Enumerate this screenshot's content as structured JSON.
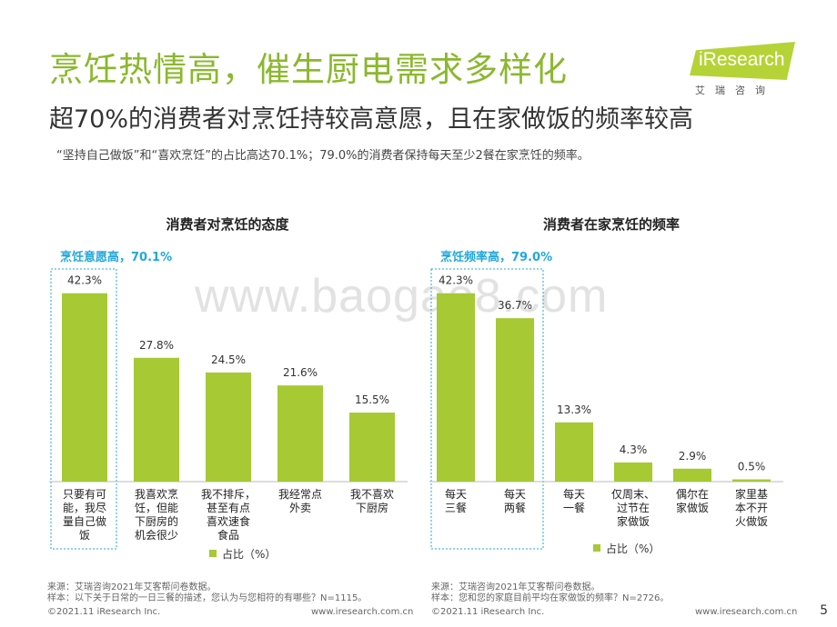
{
  "header": {
    "title": "烹饪热情高，催生厨电需求多样化",
    "subtitle": "超70%的消费者对烹饪持较高意愿，且在家做饭的频率较高",
    "summary": "“坚持自己做饭”和“喜欢烹饪”的占比高达70.1%；79.0%的消费者保持每天至少2餐在家烹饪的频率。"
  },
  "logo": {
    "text": "iResearch",
    "cn": "艾瑞咨询",
    "color": "#b5d336"
  },
  "watermark": "www.baogao8.com",
  "colors": {
    "title_green": "#8bb82e",
    "bar": "#a6c934",
    "highlight_blue": "#22a7dc"
  },
  "chart_data": [
    {
      "type": "bar",
      "title": "消费者对烹饪的态度",
      "highlight": {
        "label": "烹饪意愿高，70.1%",
        "count": 1
      },
      "categories": [
        "只要有可能，我尽量自己做饭",
        "我喜欢烹饪，但能下厨房的机会很少",
        "我不排斥，甚至有点喜欢速食食品",
        "我经常点外卖",
        "我不喜欢下厨房"
      ],
      "category_lines": [
        [
          "只要有可",
          "能，我尽",
          "量自己做",
          "饭"
        ],
        [
          "我喜欢烹",
          "饪，但能",
          "下厨房的",
          "机会很少"
        ],
        [
          "我不排斥，",
          "甚至有点",
          "喜欢速食",
          "食品"
        ],
        [
          "我经常点",
          "外卖"
        ],
        [
          "我不喜欢",
          "下厨房"
        ]
      ],
      "series": [
        {
          "name": "占比（%）",
          "values": [
            42.3,
            27.8,
            24.5,
            21.6,
            15.5
          ]
        }
      ],
      "value_labels": [
        "42.3%",
        "27.8%",
        "24.5%",
        "21.6%",
        "15.5%"
      ],
      "legend": "占比（%）",
      "source": "来源：艾瑞咨询2021年艾客帮问卷数据。",
      "sample": "样本：以下关于日常的一日三餐的描述，您认为与您相符的有哪些？N=1115。"
    },
    {
      "type": "bar",
      "title": "消费者在家烹饪的频率",
      "highlight": {
        "label": "烹饪频率高，79.0%",
        "count": 2
      },
      "categories": [
        "每天三餐",
        "每天两餐",
        "每天一餐",
        "仅周末、过节在家做饭",
        "偶尔在家做饭",
        "家里基本不开火做饭"
      ],
      "category_lines": [
        [
          "每天",
          "三餐"
        ],
        [
          "每天",
          "两餐"
        ],
        [
          "每天",
          "一餐"
        ],
        [
          "仅周末、",
          "过节在",
          "家做饭"
        ],
        [
          "偶尔在",
          "家做饭"
        ],
        [
          "家里基",
          "本不开",
          "火做饭"
        ]
      ],
      "series": [
        {
          "name": "占比（%）",
          "values": [
            42.3,
            36.7,
            13.3,
            4.3,
            2.9,
            0.5
          ]
        }
      ],
      "value_labels": [
        "42.3%",
        "36.7%",
        "13.3%",
        "4.3%",
        "2.9%",
        "0.5%"
      ],
      "legend": "占比（%）",
      "source": "来源：艾瑞咨询2021年艾客帮问卷数据。",
      "sample": "样本：您和您的家庭目前平均在家做饭的频率？N=2726。"
    }
  ],
  "footer": {
    "copyright_left": "©2021.11 iResearch Inc.",
    "url_left": "www.iresearch.com.cn",
    "copyright_right": "©2021.11 iResearch Inc.",
    "url_right": "www.iresearch.com.cn",
    "page": "5"
  }
}
